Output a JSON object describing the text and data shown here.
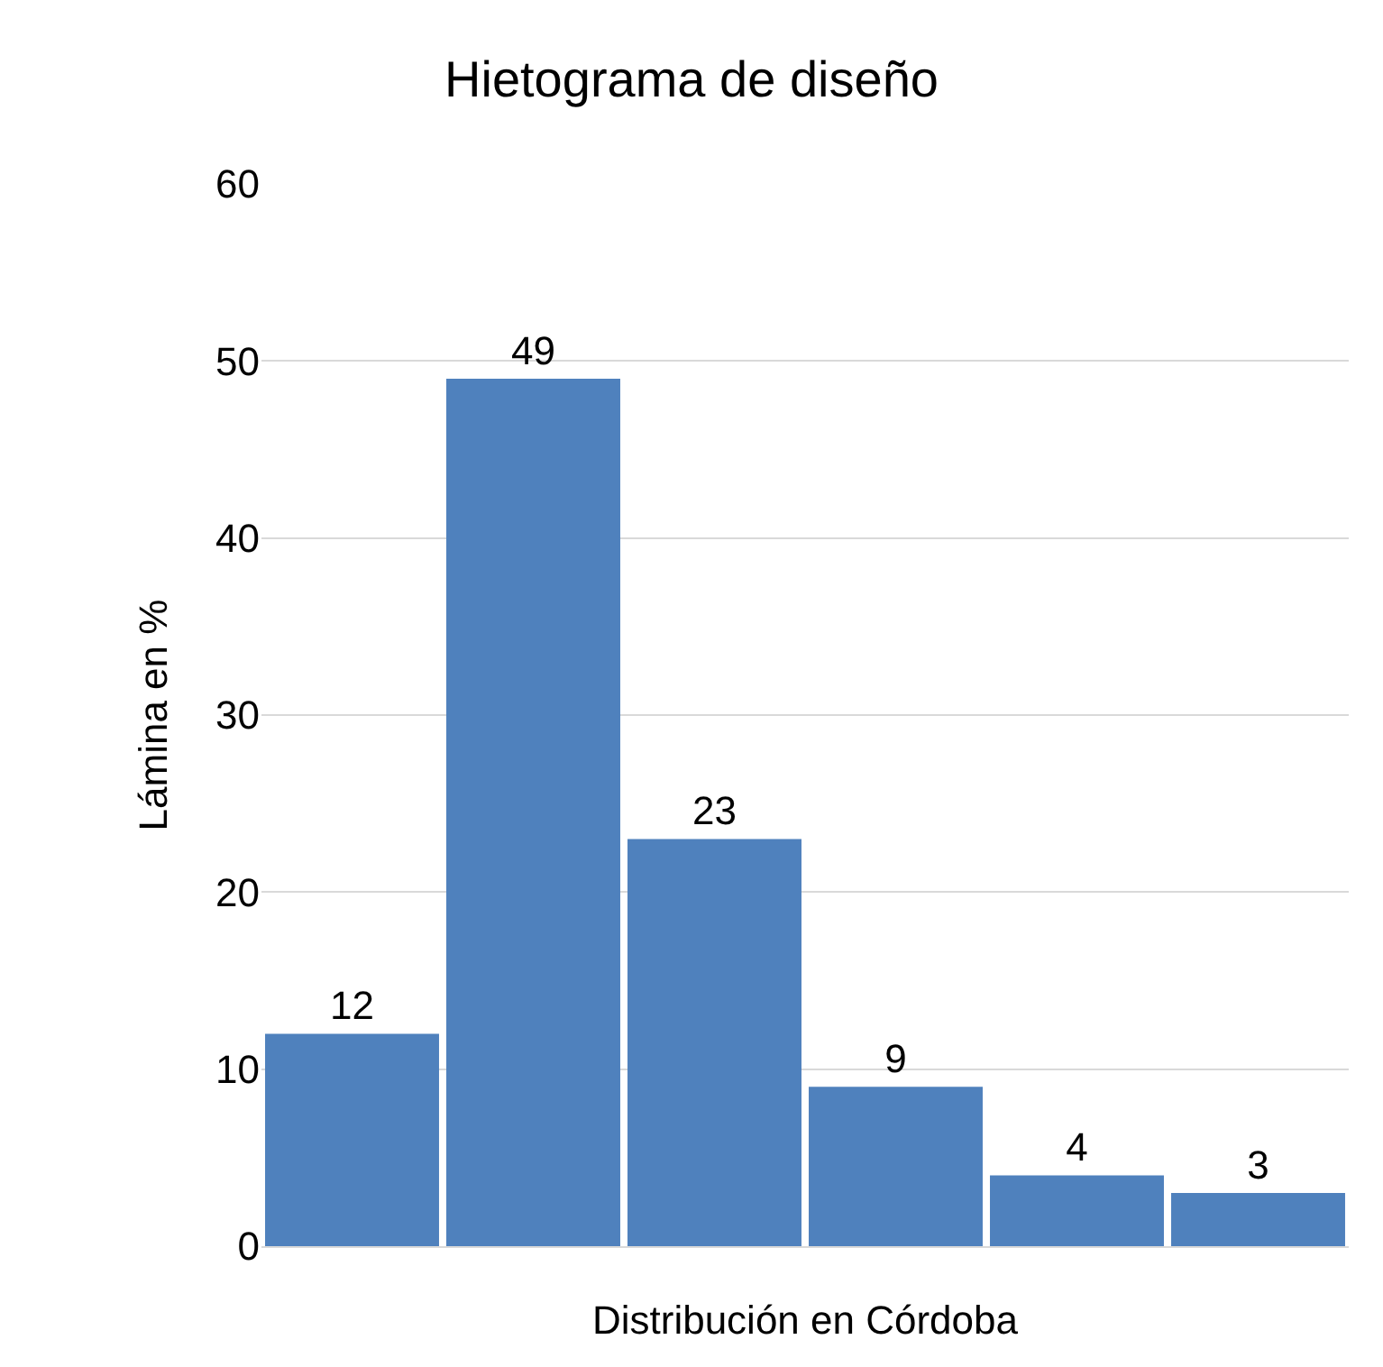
{
  "chart_data": {
    "type": "bar",
    "title": "Hietograma de diseño",
    "xlabel": "Distribución en Córdoba",
    "ylabel": "Lámina en %",
    "categories": [
      null,
      null,
      null,
      null,
      null,
      null
    ],
    "values": [
      12,
      49,
      23,
      9,
      4,
      3
    ],
    "color": "#4f81bd",
    "ylim": [
      0,
      60
    ],
    "yticks": [
      0,
      10,
      20,
      30,
      40,
      50,
      60
    ],
    "grid": "y",
    "data_labels": true
  }
}
